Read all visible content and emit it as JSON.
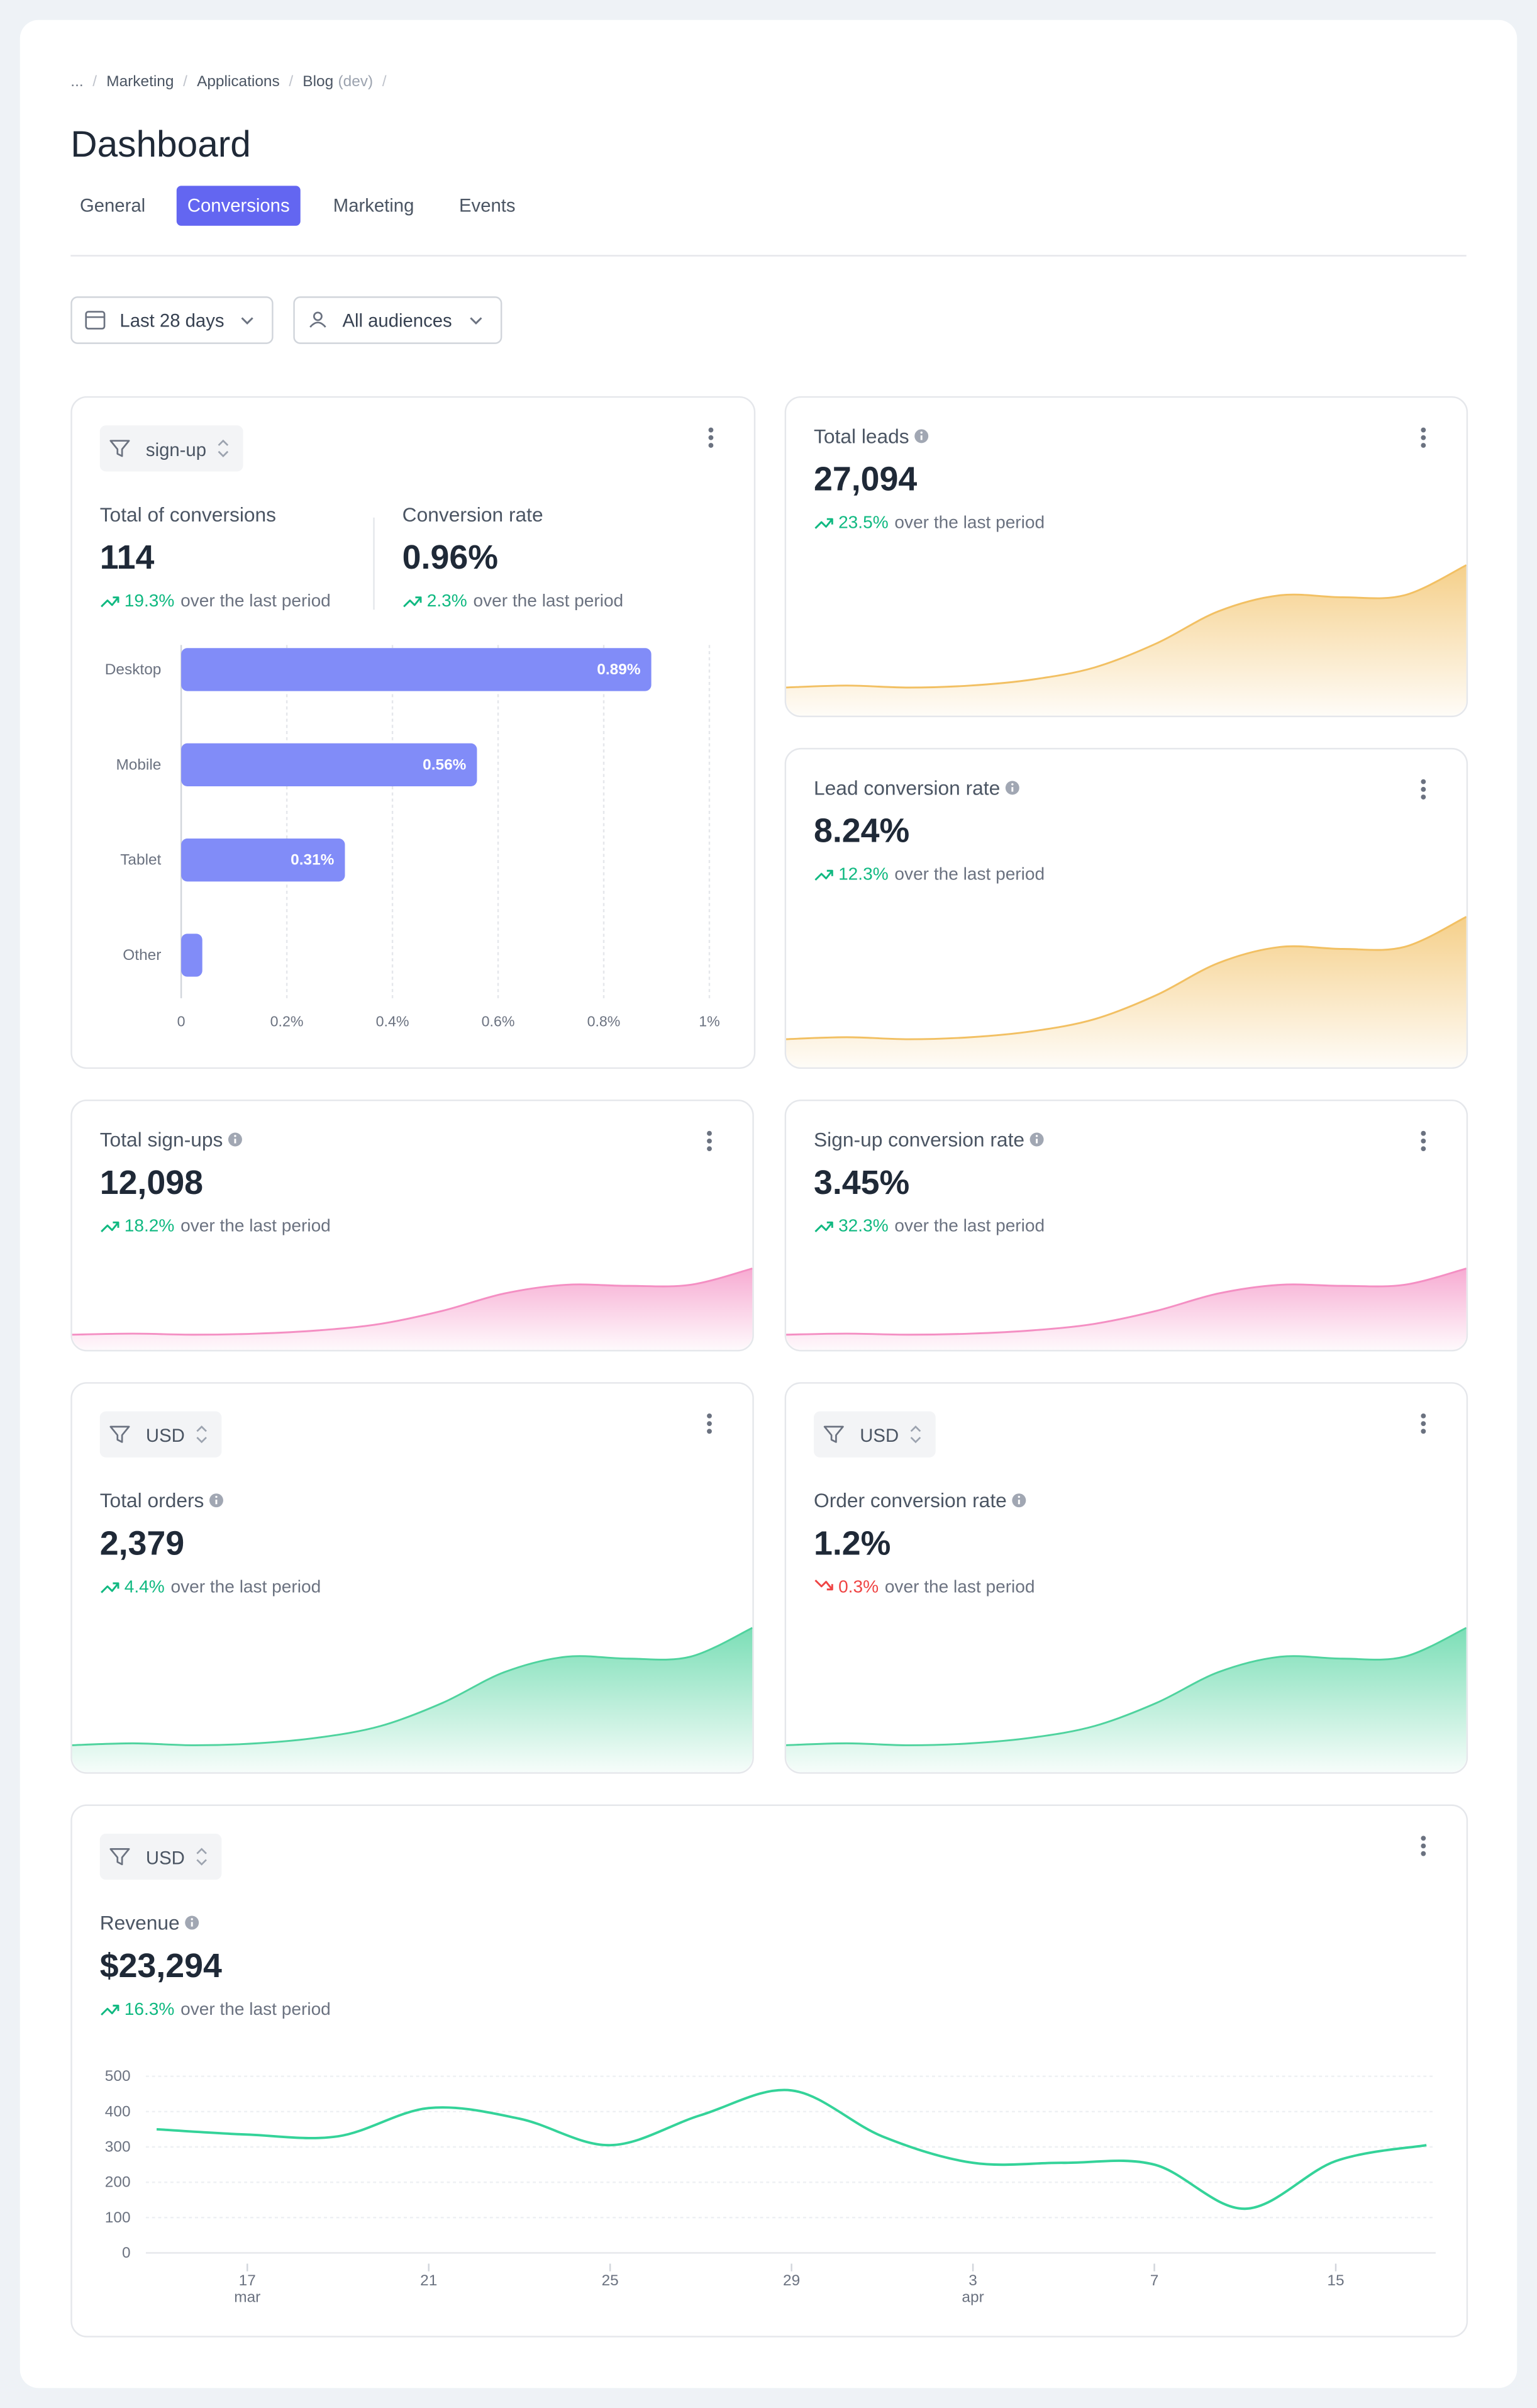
{
  "breadcrumb": [
    "...",
    "Marketing",
    "Applications",
    "Blog"
  ],
  "breadcrumb_suffix": "(dev)",
  "title": "Dashboard",
  "tabs": [
    "General",
    "Conversions",
    "Marketing",
    "Events"
  ],
  "active_tab": "Conversions",
  "filters": [
    "Last 28 days",
    "All audiences"
  ],
  "cards": [
    {
      "filter": "sign-up",
      "metrics": [
        {
          "label": "Total of conversions",
          "value": "114",
          "change": "19.3%",
          "trend": "up",
          "note": "over the last period"
        },
        {
          "label": "Conversion rate",
          "value": "0.96%",
          "change": "2.3%",
          "trend": "up",
          "note": "over the last period"
        }
      ],
      "chart": {
        "type": "bar",
        "orientation": "horizontal",
        "categories": [
          "Desktop",
          "Mobile",
          "Tablet",
          "Other"
        ],
        "values": [
          0.89,
          0.56,
          0.31,
          0.04
        ],
        "value_labels": [
          "0.89%",
          "0.56%",
          "0.31%",
          null
        ],
        "color": "#818cf8",
        "xlim": [
          0,
          1
        ],
        "xticks": [
          0,
          {
            "value": 0.2,
            "label": "0.2%"
          },
          {
            "value": 0.4,
            "label": "0.4%"
          },
          {
            "value": 0.6,
            "label": "0.6%"
          },
          {
            "value": 0.8,
            "label": "0.8%"
          },
          {
            "value": 1,
            "label": "1%"
          }
        ],
        "grid": true
      }
    },
    {
      "label": "Total leads",
      "value": "27,094",
      "change": "23.5%",
      "trend": "up",
      "note": "over the last period",
      "chart": {
        "type": "area",
        "color": "#f2c063",
        "values": [
          14,
          15,
          14,
          15,
          18,
          24,
          36,
          52,
          60,
          59,
          60,
          75
        ]
      }
    },
    {
      "label": "Lead conversion rate",
      "value": "8.24%",
      "change": "12.3%",
      "trend": "up",
      "note": "over the last period",
      "chart": {
        "type": "area",
        "color": "#f2c063",
        "values": [
          14,
          15,
          14,
          15,
          18,
          24,
          36,
          52,
          60,
          59,
          60,
          75
        ]
      }
    },
    {
      "label": "Total sign-ups",
      "value": "12,098",
      "change": "18.2%",
      "trend": "up",
      "note": "over the last period",
      "chart": {
        "type": "area",
        "color": "#f48fc3",
        "values": [
          14,
          15,
          14,
          15,
          18,
          24,
          36,
          52,
          60,
          59,
          60,
          75
        ]
      }
    },
    {
      "label": "Sign-up conversion rate",
      "value": "3.45%",
      "change": "32.3%",
      "trend": "up",
      "note": "over the last period",
      "chart": {
        "type": "area",
        "color": "#f48fc3",
        "values": [
          14,
          15,
          14,
          15,
          18,
          24,
          36,
          52,
          60,
          59,
          60,
          75
        ]
      }
    },
    {
      "filter": "USD",
      "label": "Total orders",
      "value": "2,379",
      "change": "4.4%",
      "trend": "up",
      "note": "over the last period",
      "chart": {
        "type": "area",
        "color": "#4fd39e",
        "values": [
          14,
          15,
          14,
          15,
          18,
          24,
          36,
          52,
          60,
          59,
          60,
          75
        ]
      }
    },
    {
      "filter": "USD",
      "label": "Order conversion rate",
      "value": "1.2%",
      "change": "0.3%",
      "trend": "down",
      "note": "over the last period",
      "chart": {
        "type": "area",
        "color": "#4fd39e",
        "values": [
          14,
          15,
          14,
          15,
          18,
          24,
          36,
          52,
          60,
          59,
          60,
          75
        ]
      }
    },
    {
      "filter": "USD",
      "label": "Revenue",
      "value": "$23,294",
      "change": "16.3%",
      "trend": "up",
      "note": "over the last period",
      "chart": {
        "type": "line",
        "color": "#34d399",
        "categories": [
          null,
          "17",
          null,
          "21",
          null,
          "25",
          null,
          "29",
          null,
          "3",
          null,
          "7",
          null,
          "15",
          null
        ],
        "months": [
          null,
          "mar",
          null,
          null,
          null,
          null,
          null,
          null,
          null,
          "apr",
          null,
          null,
          null,
          null,
          null
        ],
        "values": [
          350,
          335,
          330,
          410,
          380,
          305,
          390,
          460,
          330,
          255,
          255,
          250,
          125,
          260,
          305
        ],
        "ylim": [
          0,
          500
        ],
        "yticks": [
          0,
          100,
          200,
          300,
          400,
          500
        ],
        "grid": true
      }
    }
  ]
}
